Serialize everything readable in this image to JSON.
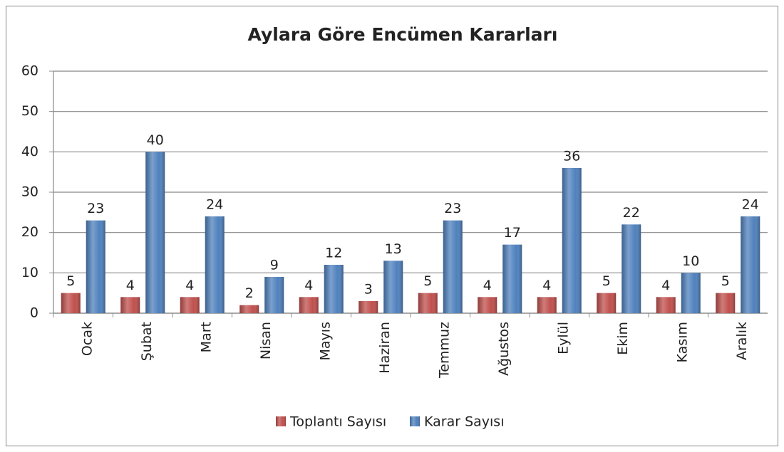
{
  "chart_data": {
    "type": "bar",
    "title": "Aylara Göre Encümen Kararları",
    "categories": [
      "Ocak",
      "Şubat",
      "Mart",
      "Nisan",
      "Mayıs",
      "Haziran",
      "Temmuz",
      "Ağustos",
      "Eylül",
      "Ekim",
      "Kasım",
      "Aralık"
    ],
    "series": [
      {
        "name": "Toplantı Sayısı",
        "color": "#c0504d",
        "values": [
          5,
          4,
          4,
          2,
          4,
          3,
          5,
          4,
          4,
          5,
          4,
          5
        ]
      },
      {
        "name": "Karar Sayısı",
        "color": "#4f81bd",
        "values": [
          23,
          40,
          24,
          9,
          12,
          13,
          23,
          17,
          36,
          22,
          10,
          24
        ]
      }
    ],
    "ylim": [
      0,
      60
    ],
    "yticks": [
      0,
      10,
      20,
      30,
      40,
      50,
      60
    ],
    "grid": true,
    "legend": "bottom"
  }
}
